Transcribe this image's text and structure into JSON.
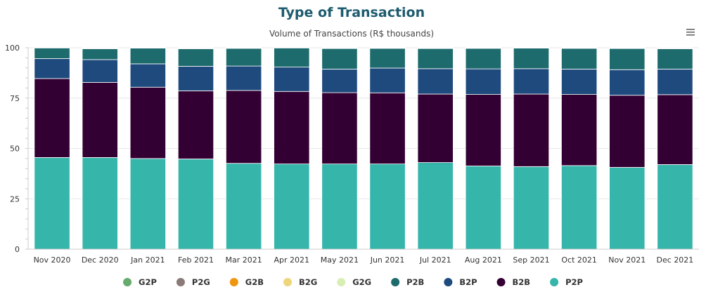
{
  "chart_data": {
    "type": "bar",
    "stacked": true,
    "title": "Type of Transaction",
    "subtitle": "Volume of Transactions (R$ thousands)",
    "xlabel": "",
    "ylabel": "",
    "ylim": [
      0,
      100
    ],
    "yticks": [
      0,
      25,
      50,
      75,
      100
    ],
    "grid": true,
    "legend_position": "bottom",
    "categories": [
      "Nov 2020",
      "Dec 2020",
      "Jan 2021",
      "Feb 2021",
      "Mar 2021",
      "Apr 2021",
      "May 2021",
      "Jun 2021",
      "Jul 2021",
      "Aug 2021",
      "Sep 2021",
      "Oct 2021",
      "Nov 2021",
      "Dec 2021"
    ],
    "series": [
      {
        "name": "P2P",
        "color": "#36b5ab",
        "values": [
          45.5,
          45.5,
          45.0,
          44.8,
          42.6,
          42.3,
          42.3,
          42.3,
          43.0,
          41.3,
          41.0,
          41.5,
          40.6,
          42.0
        ]
      },
      {
        "name": "B2B",
        "color": "#330033",
        "values": [
          39.2,
          37.3,
          35.4,
          33.8,
          36.2,
          36.0,
          35.4,
          35.3,
          34.0,
          35.5,
          36.0,
          35.3,
          35.8,
          34.7
        ]
      },
      {
        "name": "B2P",
        "color": "#1f4a7e",
        "values": [
          9.9,
          11.3,
          11.6,
          12.2,
          12.1,
          12.1,
          11.7,
          12.3,
          12.6,
          12.7,
          12.6,
          12.6,
          12.7,
          12.7
        ]
      },
      {
        "name": "P2B",
        "color": "#1e6b6e",
        "values": [
          5.3,
          5.4,
          7.8,
          8.7,
          8.8,
          9.5,
          10.2,
          9.8,
          10.0,
          10.2,
          10.2,
          10.3,
          10.5,
          10.1
        ]
      },
      {
        "name": "G2G",
        "color": "#d9eeb5",
        "values": [
          0.05,
          0.3,
          0.1,
          0.3,
          0.2,
          0.05,
          0.2,
          0.2,
          0.2,
          0.2,
          0.1,
          0.2,
          0.3,
          0.2
        ]
      },
      {
        "name": "B2G",
        "color": "#efd57a",
        "values": [
          0.05,
          0.2,
          0.1,
          0.2,
          0.1,
          0.05,
          0.2,
          0.1,
          0.2,
          0.1,
          0.1,
          0.1,
          0.1,
          0.3
        ]
      },
      {
        "name": "G2B",
        "color": "#f0960e",
        "values": [
          0,
          0,
          0,
          0,
          0,
          0,
          0,
          0,
          0,
          0,
          0,
          0,
          0,
          0
        ]
      },
      {
        "name": "P2G",
        "color": "#8a7a78",
        "values": [
          0,
          0,
          0,
          0,
          0,
          0,
          0,
          0,
          0,
          0,
          0,
          0,
          0,
          0
        ]
      },
      {
        "name": "G2P",
        "color": "#66aa6c",
        "values": [
          0,
          0,
          0,
          0,
          0,
          0,
          0,
          0,
          0,
          0,
          0,
          0,
          0,
          0
        ]
      }
    ],
    "legend_order": [
      "G2P",
      "P2G",
      "G2B",
      "B2G",
      "G2G",
      "P2B",
      "B2P",
      "B2B",
      "P2P"
    ]
  },
  "toolbar": {
    "menu_icon": "hamburger-menu-icon"
  }
}
